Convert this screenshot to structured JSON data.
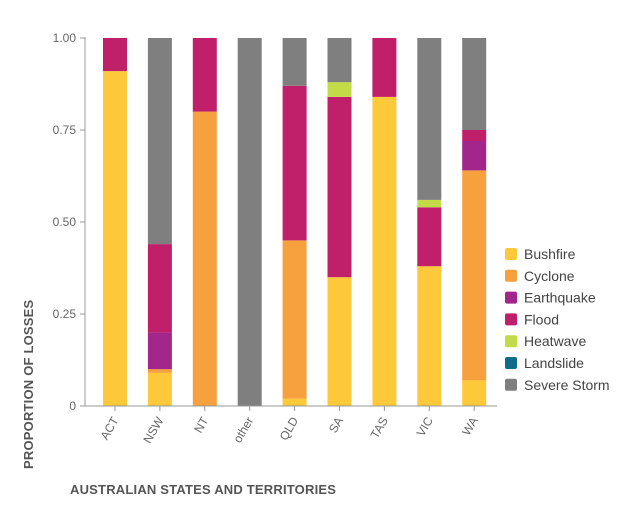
{
  "chart_data": {
    "type": "bar",
    "stacked": true,
    "xlabel": "AUSTRALIAN STATES AND TERRITORIES",
    "ylabel": "PROPORTION OF LOSSES",
    "ylim": [
      0,
      1
    ],
    "yticks": [
      "0",
      "0.25",
      "0.50",
      "0.75",
      "1.00"
    ],
    "ytick_values": [
      0,
      0.25,
      0.5,
      0.75,
      1.0
    ],
    "grid": false,
    "legend_position": "right",
    "categories": [
      "ACT",
      "NSW",
      "NT",
      "other",
      "QLD",
      "SA",
      "TAS",
      "VIC",
      "WA"
    ],
    "series": [
      {
        "name": "Bushfire",
        "color": "#FDC83A",
        "values": [
          0.91,
          0.09,
          0.0,
          0.0,
          0.02,
          0.35,
          0.84,
          0.38,
          0.07
        ]
      },
      {
        "name": "Cyclone",
        "color": "#F7A03E",
        "values": [
          0.0,
          0.01,
          0.8,
          0.0,
          0.43,
          0.0,
          0.0,
          0.0,
          0.57
        ]
      },
      {
        "name": "Earthquake",
        "color": "#A3268C",
        "values": [
          0.0,
          0.1,
          0.0,
          0.0,
          0.0,
          0.0,
          0.0,
          0.0,
          0.08
        ]
      },
      {
        "name": "Flood",
        "color": "#C0206A",
        "values": [
          0.09,
          0.24,
          0.2,
          0.0,
          0.42,
          0.49,
          0.16,
          0.16,
          0.03
        ]
      },
      {
        "name": "Heatwave",
        "color": "#C3DB47",
        "values": [
          0.0,
          0.0,
          0.0,
          0.0,
          0.0,
          0.04,
          0.0,
          0.02,
          0.0
        ]
      },
      {
        "name": "Landslide",
        "color": "#0E6B8A",
        "values": [
          0.0,
          0.0,
          0.0,
          0.0,
          0.0,
          0.0,
          0.0,
          0.0,
          0.0
        ]
      },
      {
        "name": "Severe Storm",
        "color": "#7F7F7F",
        "values": [
          0.0,
          0.56,
          0.0,
          1.0,
          0.13,
          0.12,
          0.0,
          0.44,
          0.25
        ]
      }
    ]
  }
}
